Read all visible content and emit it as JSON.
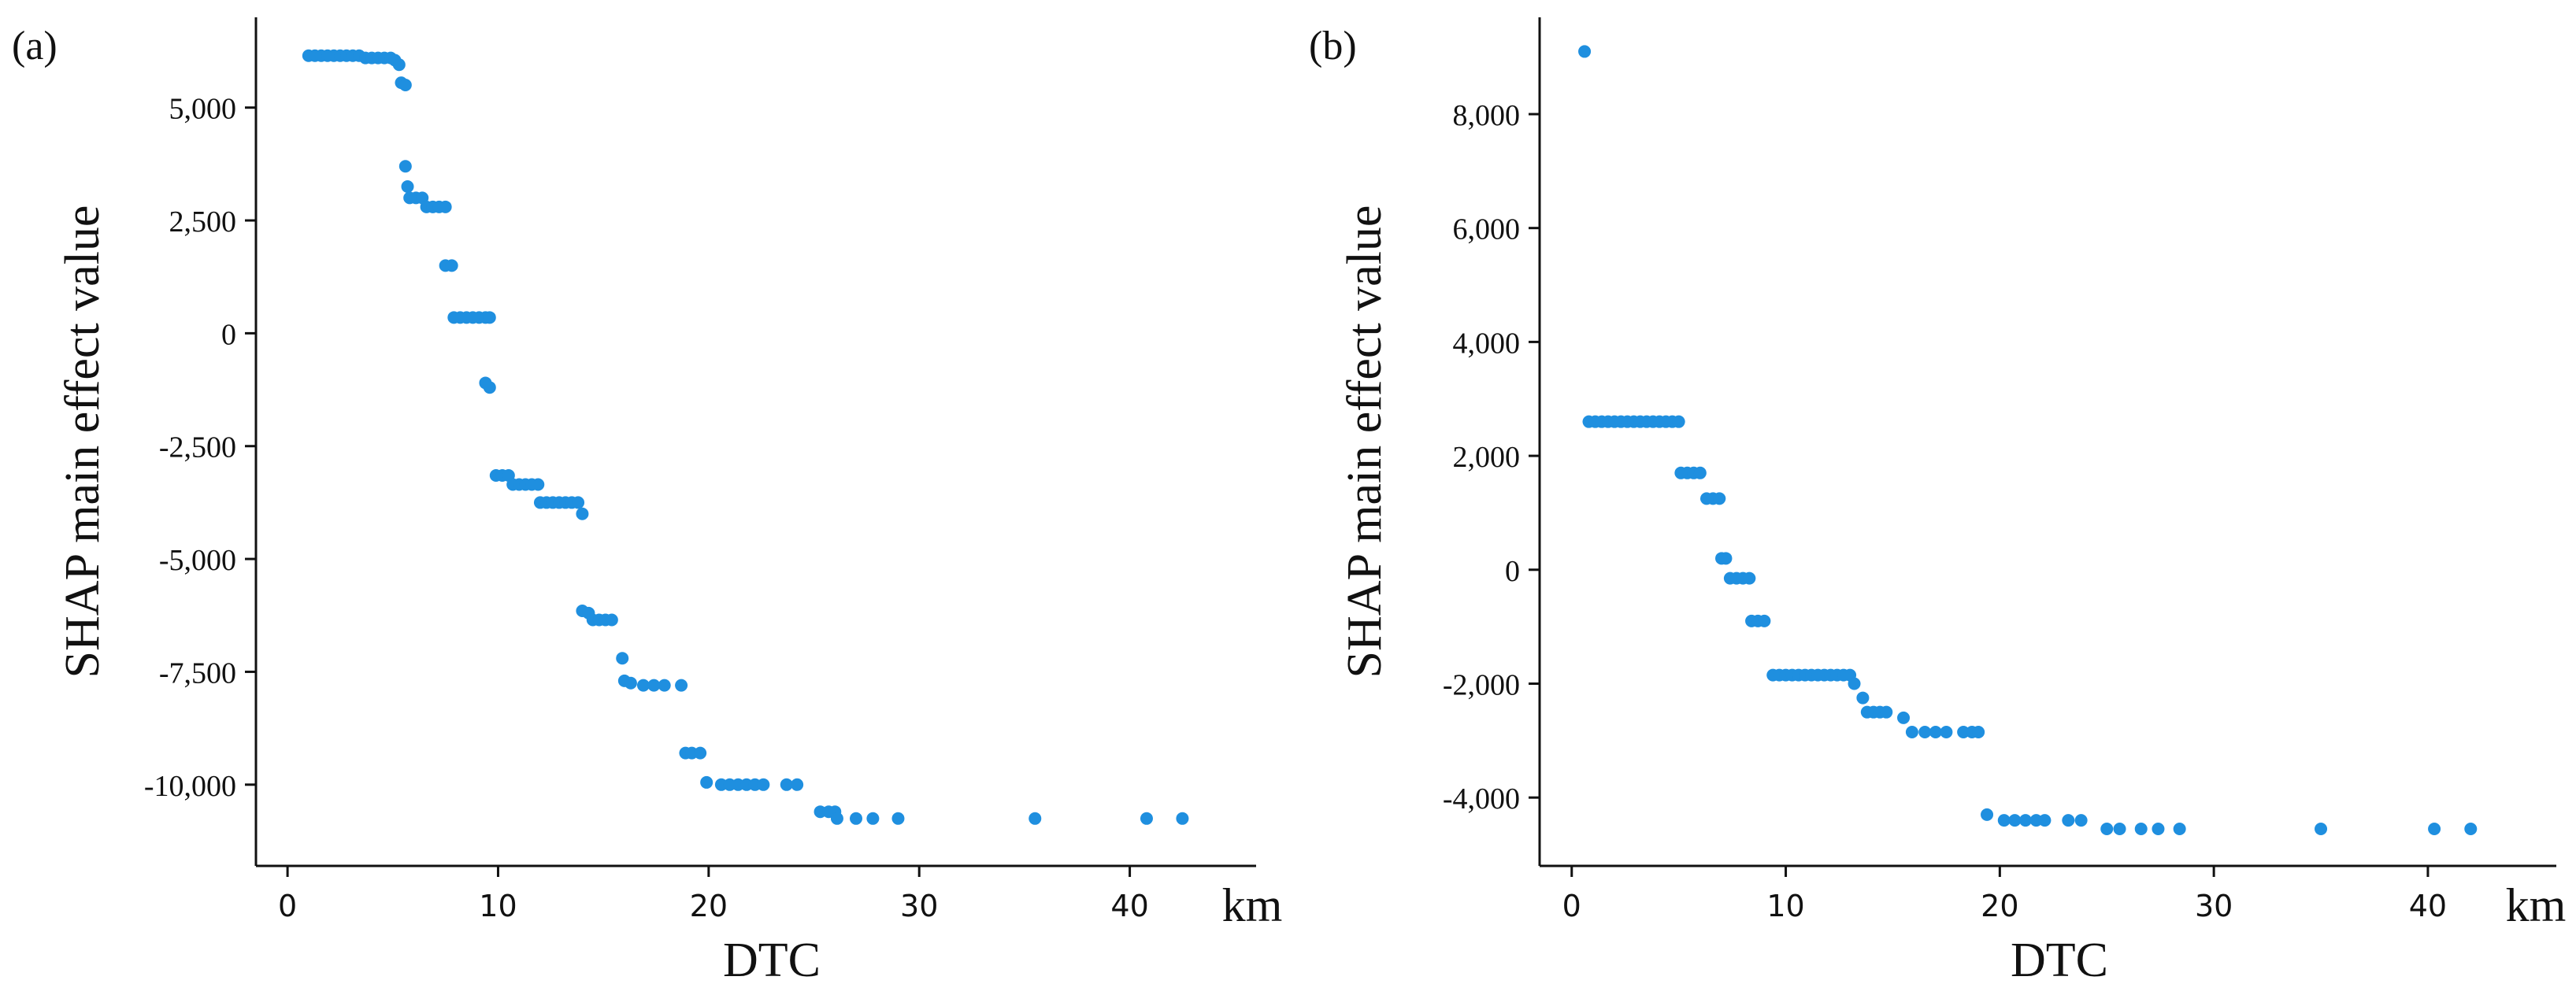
{
  "figure": {
    "colors": {
      "point": "#1f8fdf",
      "axis": "#111111",
      "text": "#111111"
    }
  },
  "chart_data": [
    {
      "type": "scatter",
      "panel_label": "(a)",
      "xlabel": "DTC",
      "xunit": "km",
      "ylabel": "SHAP main effect value",
      "xlim": [
        -1.5,
        46
      ],
      "ylim": [
        -11800,
        7000
      ],
      "xticks": [
        0,
        10,
        20,
        30,
        40
      ],
      "xtick_labels": [
        "0",
        "10",
        "20",
        "30",
        "40"
      ],
      "yticks": [
        5000,
        2500,
        0,
        -2500,
        -5000,
        -7500,
        -10000
      ],
      "ytick_labels": [
        "5,000",
        "2,500",
        "0",
        "-2,500",
        "-5,000",
        "-7,500",
        "-10,000"
      ],
      "grid": false,
      "points": [
        [
          1.0,
          6150
        ],
        [
          1.3,
          6150
        ],
        [
          1.6,
          6150
        ],
        [
          1.9,
          6150
        ],
        [
          2.2,
          6150
        ],
        [
          2.5,
          6150
        ],
        [
          2.8,
          6150
        ],
        [
          3.1,
          6150
        ],
        [
          3.4,
          6150
        ],
        [
          3.7,
          6100
        ],
        [
          4.0,
          6100
        ],
        [
          4.3,
          6100
        ],
        [
          4.6,
          6100
        ],
        [
          4.9,
          6100
        ],
        [
          5.1,
          6050
        ],
        [
          5.3,
          5950
        ],
        [
          5.4,
          5550
        ],
        [
          5.6,
          5500
        ],
        [
          5.6,
          3700
        ],
        [
          5.7,
          3250
        ],
        [
          5.8,
          3000
        ],
        [
          6.1,
          3000
        ],
        [
          6.4,
          3000
        ],
        [
          6.6,
          2800
        ],
        [
          6.9,
          2800
        ],
        [
          7.2,
          2800
        ],
        [
          7.5,
          2800
        ],
        [
          7.5,
          1500
        ],
        [
          7.8,
          1500
        ],
        [
          7.9,
          350
        ],
        [
          8.2,
          350
        ],
        [
          8.5,
          350
        ],
        [
          8.8,
          350
        ],
        [
          9.1,
          350
        ],
        [
          9.4,
          350
        ],
        [
          9.6,
          350
        ],
        [
          9.4,
          -1100
        ],
        [
          9.6,
          -1200
        ],
        [
          9.9,
          -3150
        ],
        [
          10.2,
          -3150
        ],
        [
          10.5,
          -3150
        ],
        [
          10.7,
          -3350
        ],
        [
          11.0,
          -3350
        ],
        [
          11.3,
          -3350
        ],
        [
          11.6,
          -3350
        ],
        [
          11.9,
          -3350
        ],
        [
          12.0,
          -3750
        ],
        [
          12.3,
          -3750
        ],
        [
          12.6,
          -3750
        ],
        [
          12.9,
          -3750
        ],
        [
          13.2,
          -3750
        ],
        [
          13.5,
          -3750
        ],
        [
          13.8,
          -3750
        ],
        [
          14.0,
          -4000
        ],
        [
          14.0,
          -6150
        ],
        [
          14.3,
          -6200
        ],
        [
          14.5,
          -6350
        ],
        [
          14.8,
          -6350
        ],
        [
          15.1,
          -6350
        ],
        [
          15.4,
          -6350
        ],
        [
          15.9,
          -7200
        ],
        [
          16.0,
          -7700
        ],
        [
          16.3,
          -7750
        ],
        [
          16.9,
          -7800
        ],
        [
          17.4,
          -7800
        ],
        [
          17.9,
          -7800
        ],
        [
          18.7,
          -7800
        ],
        [
          18.9,
          -9300
        ],
        [
          19.2,
          -9300
        ],
        [
          19.6,
          -9300
        ],
        [
          19.9,
          -9950
        ],
        [
          20.6,
          -10000
        ],
        [
          21.0,
          -10000
        ],
        [
          21.4,
          -10000
        ],
        [
          21.8,
          -10000
        ],
        [
          22.2,
          -10000
        ],
        [
          22.6,
          -10000
        ],
        [
          23.7,
          -10000
        ],
        [
          24.2,
          -10000
        ],
        [
          25.3,
          -10600
        ],
        [
          25.7,
          -10600
        ],
        [
          26.0,
          -10600
        ],
        [
          26.1,
          -10750
        ],
        [
          27.0,
          -10750
        ],
        [
          27.8,
          -10750
        ],
        [
          29.0,
          -10750
        ],
        [
          35.5,
          -10750
        ],
        [
          40.8,
          -10750
        ],
        [
          42.5,
          -10750
        ]
      ]
    },
    {
      "type": "scatter",
      "panel_label": "(b)",
      "xlabel": "DTC",
      "xunit": "km",
      "ylabel": "SHAP main effect value",
      "xlim": [
        -1.5,
        46
      ],
      "ylim": [
        -5200,
        9700
      ],
      "xticks": [
        0,
        10,
        20,
        30,
        40
      ],
      "xtick_labels": [
        "0",
        "10",
        "20",
        "30",
        "40"
      ],
      "yticks": [
        8000,
        6000,
        4000,
        2000,
        0,
        -2000,
        -4000
      ],
      "ytick_labels": [
        "8,000",
        "6,000",
        "4,000",
        "2,000",
        "0",
        "-2,000",
        "-4,000"
      ],
      "grid": false,
      "points": [
        [
          0.6,
          9100
        ],
        [
          0.8,
          2600
        ],
        [
          1.1,
          2600
        ],
        [
          1.4,
          2600
        ],
        [
          1.7,
          2600
        ],
        [
          2.0,
          2600
        ],
        [
          2.3,
          2600
        ],
        [
          2.6,
          2600
        ],
        [
          2.9,
          2600
        ],
        [
          3.2,
          2600
        ],
        [
          3.5,
          2600
        ],
        [
          3.8,
          2600
        ],
        [
          4.1,
          2600
        ],
        [
          4.4,
          2600
        ],
        [
          4.7,
          2600
        ],
        [
          5.0,
          2600
        ],
        [
          5.1,
          1700
        ],
        [
          5.4,
          1700
        ],
        [
          5.7,
          1700
        ],
        [
          6.0,
          1700
        ],
        [
          6.3,
          1250
        ],
        [
          6.6,
          1250
        ],
        [
          6.9,
          1250
        ],
        [
          7.0,
          200
        ],
        [
          7.2,
          200
        ],
        [
          7.4,
          -150
        ],
        [
          7.7,
          -150
        ],
        [
          8.0,
          -150
        ],
        [
          8.3,
          -150
        ],
        [
          8.4,
          -900
        ],
        [
          8.7,
          -900
        ],
        [
          9.0,
          -900
        ],
        [
          9.4,
          -1850
        ],
        [
          9.7,
          -1850
        ],
        [
          10.0,
          -1850
        ],
        [
          10.3,
          -1850
        ],
        [
          10.6,
          -1850
        ],
        [
          10.9,
          -1850
        ],
        [
          11.2,
          -1850
        ],
        [
          11.5,
          -1850
        ],
        [
          11.8,
          -1850
        ],
        [
          12.1,
          -1850
        ],
        [
          12.4,
          -1850
        ],
        [
          12.7,
          -1850
        ],
        [
          13.0,
          -1850
        ],
        [
          13.2,
          -2000
        ],
        [
          13.6,
          -2250
        ],
        [
          13.8,
          -2500
        ],
        [
          14.1,
          -2500
        ],
        [
          14.4,
          -2500
        ],
        [
          14.7,
          -2500
        ],
        [
          15.5,
          -2600
        ],
        [
          15.9,
          -2850
        ],
        [
          16.5,
          -2850
        ],
        [
          17.0,
          -2850
        ],
        [
          17.5,
          -2850
        ],
        [
          18.3,
          -2850
        ],
        [
          18.7,
          -2850
        ],
        [
          19.0,
          -2850
        ],
        [
          19.4,
          -4300
        ],
        [
          20.2,
          -4400
        ],
        [
          20.7,
          -4400
        ],
        [
          21.2,
          -4400
        ],
        [
          21.7,
          -4400
        ],
        [
          22.1,
          -4400
        ],
        [
          23.2,
          -4400
        ],
        [
          23.8,
          -4400
        ],
        [
          25.0,
          -4550
        ],
        [
          25.6,
          -4550
        ],
        [
          26.6,
          -4550
        ],
        [
          27.4,
          -4550
        ],
        [
          28.4,
          -4550
        ],
        [
          35.0,
          -4550
        ],
        [
          40.3,
          -4550
        ],
        [
          42.0,
          -4550
        ]
      ]
    }
  ]
}
